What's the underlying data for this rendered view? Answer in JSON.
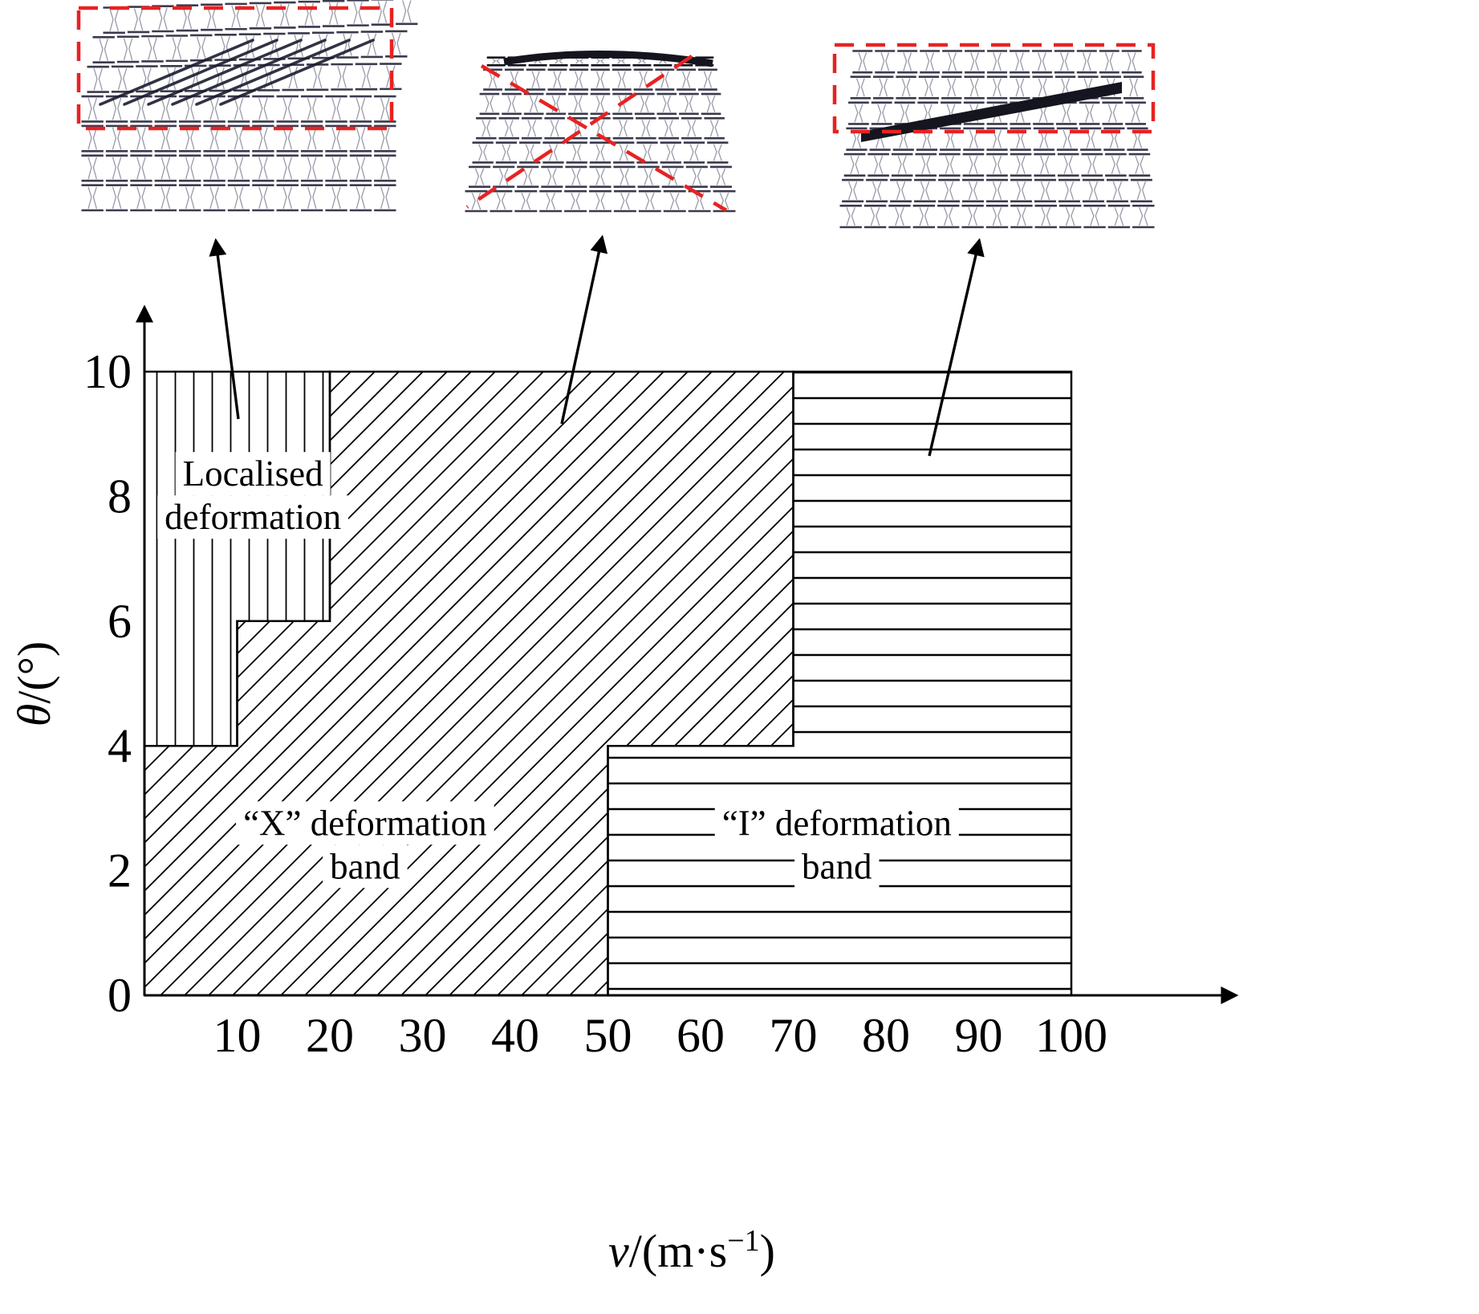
{
  "figure": {
    "kind": "deformation mode map with lattice insets"
  },
  "chart_data": {
    "type": "area",
    "title": "",
    "xlabel": "v/(m·s⁻¹)",
    "ylabel": "θ/(°)",
    "xlabel_parts": [
      {
        "t": "v",
        "style": "italic"
      },
      {
        "t": "/(m·s"
      },
      {
        "t": "−1",
        "sup": true
      },
      {
        "t": ")"
      }
    ],
    "ylabel_parts": [
      {
        "t": "θ",
        "style": "italic"
      },
      {
        "t": "/(°)"
      }
    ],
    "xlim": [
      0,
      107
    ],
    "ylim": [
      0,
      11.2
    ],
    "xticks": [
      10,
      20,
      30,
      40,
      50,
      60,
      70,
      80,
      90,
      100
    ],
    "yticks": [
      0,
      2,
      4,
      6,
      8,
      10
    ],
    "grid": false,
    "legend": "none",
    "regions": [
      {
        "name": "localised-deformation",
        "label_lines": [
          "Localised",
          "deformation"
        ],
        "hatch": "vertical",
        "polygon_v_theta": [
          [
            0,
            10
          ],
          [
            20,
            10
          ],
          [
            20,
            6
          ],
          [
            10,
            6
          ],
          [
            10,
            4
          ],
          [
            0,
            4
          ]
        ],
        "label_anchor_v_theta": [
          11.7,
          8.17
        ]
      },
      {
        "name": "x-deformation-band",
        "label_lines": [
          "“X” deformation",
          "band"
        ],
        "hatch": "diagonal",
        "polygon_v_theta": [
          [
            0,
            4
          ],
          [
            10,
            4
          ],
          [
            10,
            6
          ],
          [
            20,
            6
          ],
          [
            20,
            10
          ],
          [
            70,
            10
          ],
          [
            70,
            4
          ],
          [
            50,
            4
          ],
          [
            50,
            0
          ],
          [
            0,
            0
          ]
        ],
        "label_anchor_v_theta": [
          23.8,
          2.57
        ]
      },
      {
        "name": "i-deformation-band",
        "label_lines": [
          "“I” deformation",
          "band"
        ],
        "hatch": "horizontal",
        "polygon_v_theta": [
          [
            50,
            0
          ],
          [
            50,
            4
          ],
          [
            70,
            4
          ],
          [
            70,
            10
          ],
          [
            100,
            10
          ],
          [
            100,
            0
          ]
        ],
        "label_anchor_v_theta": [
          74.7,
          2.57
        ]
      }
    ],
    "insets": [
      {
        "name": "inset-localised-deformation",
        "deformation": "localised",
        "annotation": "red-dashed-rectangle-top"
      },
      {
        "name": "inset-x-deformation-band",
        "deformation": "x-band",
        "annotation": "red-dashed-x"
      },
      {
        "name": "inset-i-deformation-band",
        "deformation": "i-band",
        "annotation": "red-dashed-rectangle-top"
      }
    ],
    "colors": {
      "hatch": "#000000",
      "axis": "#000000",
      "annotation_red": "#e82222",
      "lattice_dark": "#3a3a4e",
      "lattice_crush": "#15151f",
      "lattice_light": "#9a9aa8",
      "label_background": "#ffffff"
    }
  }
}
